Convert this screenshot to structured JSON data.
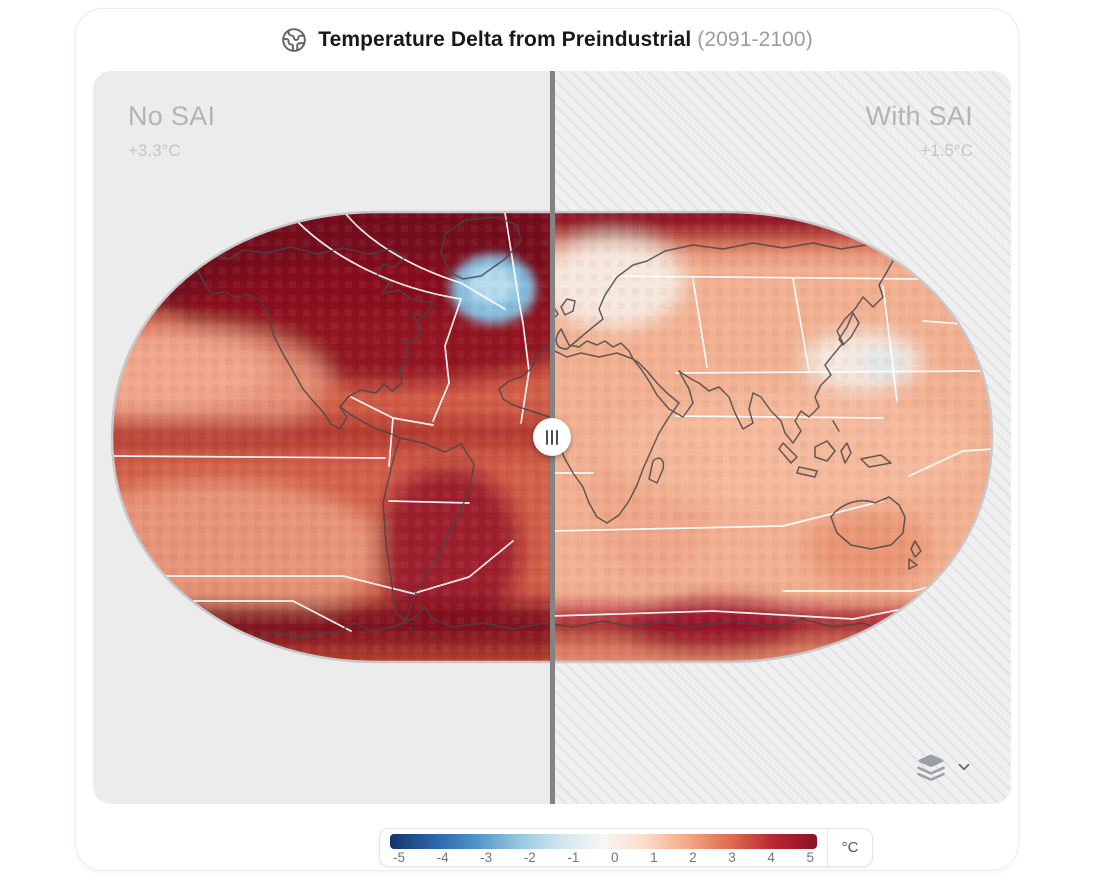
{
  "header": {
    "icon": "earth-icon",
    "title": "Temperature Delta from Preindustrial",
    "period": "(2091-2100)"
  },
  "panels": {
    "left": {
      "label": "No SAI",
      "delta": "+3.3°C"
    },
    "right": {
      "label": "With SAI",
      "delta": "+1.5°C"
    }
  },
  "divider": {
    "handle_icon": "grip-vertical-icon",
    "color": "#838383"
  },
  "layers_control": {
    "icon": "layers-icon",
    "chevron_icon": "chevron-down-icon"
  },
  "legend": {
    "unit": "°C",
    "ticks": [
      "-5",
      "-4",
      "-3",
      "-2",
      "-1",
      "0",
      "1",
      "2",
      "3",
      "4",
      "5"
    ],
    "gradient_stops": [
      "#16356b",
      "#2a63a9",
      "#4f93c6",
      "#94c6df",
      "#d2e5f0",
      "#f7f6f4",
      "#fbdcc7",
      "#f4a683",
      "#dd6a4e",
      "#b62633",
      "#8e1126"
    ]
  }
}
